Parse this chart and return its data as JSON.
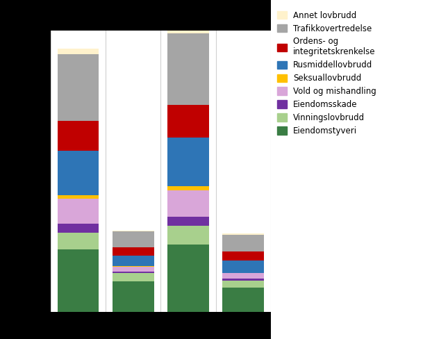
{
  "series": {
    "Eiendomstyveri": [
      1380,
      680,
      1480,
      530
    ],
    "Vinningslovbrudd": [
      370,
      170,
      420,
      160
    ],
    "Eiendomsskade": [
      190,
      40,
      200,
      50
    ],
    "Vold og mishandling": [
      560,
      105,
      580,
      110
    ],
    "Seksuallovbrudd": [
      75,
      8,
      85,
      10
    ],
    "Rusmiddellovbrudd": [
      970,
      235,
      1070,
      265
    ],
    "Ordens- og integritetskrenkelse": [
      670,
      190,
      730,
      205
    ],
    "Trafikkovertredelse": [
      1470,
      340,
      1570,
      365
    ],
    "Annet lovbrudd": [
      113,
      27,
      123,
      30
    ]
  },
  "colors": {
    "Eiendomstyveri": "#3a7d44",
    "Vinningslovbrudd": "#a8d08d",
    "Eiendomsskade": "#7030a0",
    "Vold og mishandling": "#d9a6d9",
    "Seksuallovbrudd": "#ffc000",
    "Rusmiddellovbrudd": "#2e75b6",
    "Ordens- og integritetskrenkelse": "#c00000",
    "Trafikkovertredelse": "#a5a5a5",
    "Annet lovbrudd": "#fff2cc"
  },
  "legend_order": [
    "Annet lovbrudd",
    "Trafikkovertredelse",
    "Ordens- og integritetskrenkelse",
    "Rusmiddellovbrudd",
    "Seksuallovbrudd",
    "Vold og mishandling",
    "Eiendomsskade",
    "Vinningslovbrudd",
    "Eiendomstyveri"
  ],
  "stack_order": [
    "Eiendomstyveri",
    "Vinningslovbrudd",
    "Eiendomsskade",
    "Vold og mishandling",
    "Seksuallovbrudd",
    "Rusmiddellovbrudd",
    "Ordens- og integritetskrenkelse",
    "Trafikkovertredelse",
    "Annet lovbrudd"
  ],
  "bar_positions": [
    0.5,
    1.5,
    2.5,
    3.5
  ],
  "bar_width": 0.75,
  "n_columns": 4,
  "ylim": [
    0,
    6200
  ],
  "grid_color": "#d0d0d0",
  "background_color": "#ffffff",
  "outer_background": "#000000",
  "legend_fontsize": 8.5
}
